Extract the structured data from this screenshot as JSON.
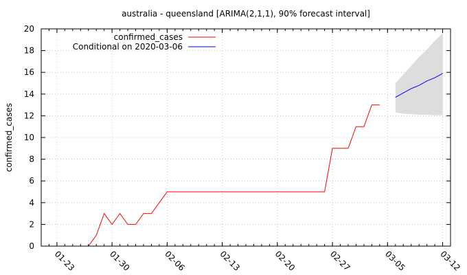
{
  "chart_data": {
    "type": "line",
    "title": "australia - queensland [ARIMA(2,1,1), 90% forecast interval]",
    "xlabel": "",
    "ylabel": "confirmed_cases",
    "ylim": [
      0,
      20
    ],
    "xlim": [
      "2020-01-21",
      "2020-03-13"
    ],
    "yticks": [
      0,
      2,
      4,
      6,
      8,
      10,
      12,
      14,
      16,
      18,
      20
    ],
    "xticks": [
      {
        "date": "2020-01-23",
        "label": "01-23"
      },
      {
        "date": "2020-01-30",
        "label": "01-30"
      },
      {
        "date": "2020-02-06",
        "label": "02-06"
      },
      {
        "date": "2020-02-13",
        "label": "02-13"
      },
      {
        "date": "2020-02-20",
        "label": "02-20"
      },
      {
        "date": "2020-02-27",
        "label": "02-27"
      },
      {
        "date": "2020-03-05",
        "label": "03-05"
      },
      {
        "date": "2020-03-12",
        "label": "03-12"
      }
    ],
    "grid": true,
    "legend_position": "top-left",
    "series": [
      {
        "name": "confirmed_cases",
        "color": "#ff0000",
        "points": [
          {
            "x": "2020-01-27",
            "y": 0
          },
          {
            "x": "2020-01-28",
            "y": 1
          },
          {
            "x": "2020-01-29",
            "y": 3
          },
          {
            "x": "2020-01-30",
            "y": 2
          },
          {
            "x": "2020-01-31",
            "y": 3
          },
          {
            "x": "2020-02-01",
            "y": 2
          },
          {
            "x": "2020-02-02",
            "y": 2
          },
          {
            "x": "2020-02-03",
            "y": 3
          },
          {
            "x": "2020-02-04",
            "y": 3
          },
          {
            "x": "2020-02-05",
            "y": 4
          },
          {
            "x": "2020-02-06",
            "y": 5
          },
          {
            "x": "2020-02-07",
            "y": 5
          },
          {
            "x": "2020-02-26",
            "y": 5
          },
          {
            "x": "2020-02-27",
            "y": 9
          },
          {
            "x": "2020-02-28",
            "y": 9
          },
          {
            "x": "2020-02-29",
            "y": 9
          },
          {
            "x": "2020-03-01",
            "y": 11
          },
          {
            "x": "2020-03-02",
            "y": 11
          },
          {
            "x": "2020-03-03",
            "y": 13
          },
          {
            "x": "2020-03-04",
            "y": 13
          }
        ]
      },
      {
        "name": "Conditional on 2020-03-06",
        "color": "#0000ff",
        "points": [
          {
            "x": "2020-03-06",
            "y": 13.7
          },
          {
            "x": "2020-03-07",
            "y": 14.1
          },
          {
            "x": "2020-03-08",
            "y": 14.5
          },
          {
            "x": "2020-03-09",
            "y": 14.8
          },
          {
            "x": "2020-03-10",
            "y": 15.2
          },
          {
            "x": "2020-03-11",
            "y": 15.5
          },
          {
            "x": "2020-03-12",
            "y": 15.9
          }
        ]
      }
    ],
    "forecast_interval": {
      "color": "#dddddd",
      "lower": [
        {
          "x": "2020-03-06",
          "y": 12.3
        },
        {
          "x": "2020-03-07",
          "y": 12.2
        },
        {
          "x": "2020-03-08",
          "y": 12.15
        },
        {
          "x": "2020-03-09",
          "y": 12.1
        },
        {
          "x": "2020-03-10",
          "y": 12.1
        },
        {
          "x": "2020-03-11",
          "y": 12.05
        },
        {
          "x": "2020-03-12",
          "y": 12.05
        }
      ],
      "upper": [
        {
          "x": "2020-03-06",
          "y": 15.0
        },
        {
          "x": "2020-03-07",
          "y": 15.8
        },
        {
          "x": "2020-03-08",
          "y": 16.6
        },
        {
          "x": "2020-03-09",
          "y": 17.4
        },
        {
          "x": "2020-03-10",
          "y": 18.1
        },
        {
          "x": "2020-03-11",
          "y": 18.9
        },
        {
          "x": "2020-03-12",
          "y": 19.6
        }
      ]
    }
  }
}
